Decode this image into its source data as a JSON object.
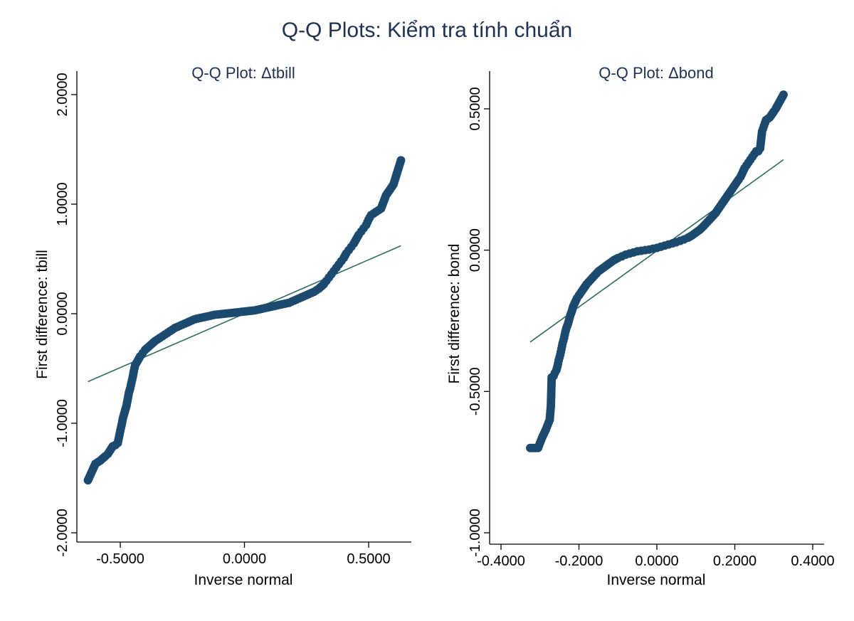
{
  "page_title": "Q-Q Plots: Kiểm tra tính chuẩn",
  "colors": {
    "points": "#1c4a6e",
    "line": "#2e6b61",
    "axis": "#000000",
    "title": "#1f3152"
  },
  "chart_data": [
    {
      "type": "scatter",
      "title": "Q-Q Plot: Δtbill",
      "xlabel": "Inverse normal",
      "ylabel": "First difference: tbill",
      "xlim": [
        -0.5,
        0.5
      ],
      "ylim": [
        -2.0,
        2.0
      ],
      "xticks": [
        -0.5,
        0.0,
        0.5
      ],
      "xtick_labels": [
        "-0.5000",
        "0.0000",
        "0.5000"
      ],
      "yticks": [
        -2.0,
        -1.0,
        0.0,
        1.0,
        2.0
      ],
      "ytick_labels": [
        "-2.0000",
        "-1.0000",
        "0.0000",
        "1.0000",
        "2.0000"
      ],
      "reference_line": {
        "x": [
          -0.63,
          0.63
        ],
        "y": [
          -0.62,
          0.62
        ]
      },
      "series": [
        {
          "x": [
            -0.63,
            -0.6,
            -0.58,
            -0.56,
            -0.55,
            -0.53,
            -0.52,
            -0.51,
            -0.5,
            -0.495,
            -0.49,
            -0.485,
            -0.48,
            -0.475,
            -0.47,
            -0.465,
            -0.46,
            -0.455,
            -0.45,
            -0.445,
            -0.44,
            -0.43,
            -0.42,
            -0.41,
            -0.4,
            -0.38,
            -0.36,
            -0.34,
            -0.32,
            -0.3,
            -0.28,
            -0.26,
            -0.24,
            -0.22,
            -0.2,
            -0.18,
            -0.16,
            -0.14,
            -0.12,
            -0.1,
            -0.08,
            -0.06,
            -0.04,
            -0.02,
            0.0,
            0.02,
            0.04,
            0.06,
            0.08,
            0.1,
            0.12,
            0.14,
            0.16,
            0.18,
            0.2,
            0.22,
            0.24,
            0.26,
            0.28,
            0.3,
            0.32,
            0.33,
            0.34,
            0.35,
            0.36,
            0.37,
            0.38,
            0.39,
            0.4,
            0.41,
            0.42,
            0.43,
            0.44,
            0.45,
            0.46,
            0.47,
            0.48,
            0.49,
            0.5,
            0.51,
            0.53,
            0.55,
            0.57,
            0.6,
            0.63
          ],
          "y": [
            -1.52,
            -1.37,
            -1.34,
            -1.3,
            -1.28,
            -1.21,
            -1.2,
            -1.18,
            -1.07,
            -1.02,
            -0.96,
            -0.92,
            -0.88,
            -0.84,
            -0.78,
            -0.72,
            -0.68,
            -0.63,
            -0.58,
            -0.52,
            -0.47,
            -0.43,
            -0.39,
            -0.36,
            -0.33,
            -0.29,
            -0.25,
            -0.22,
            -0.19,
            -0.16,
            -0.13,
            -0.11,
            -0.09,
            -0.07,
            -0.05,
            -0.04,
            -0.03,
            -0.02,
            -0.01,
            -0.005,
            0.0,
            0.005,
            0.01,
            0.015,
            0.02,
            0.025,
            0.03,
            0.04,
            0.05,
            0.06,
            0.07,
            0.08,
            0.09,
            0.1,
            0.12,
            0.14,
            0.16,
            0.18,
            0.2,
            0.23,
            0.27,
            0.3,
            0.33,
            0.36,
            0.39,
            0.42,
            0.45,
            0.48,
            0.51,
            0.55,
            0.58,
            0.61,
            0.64,
            0.68,
            0.72,
            0.75,
            0.78,
            0.81,
            0.86,
            0.9,
            0.93,
            0.96,
            1.08,
            1.18,
            1.4
          ]
        }
      ]
    },
    {
      "type": "scatter",
      "title": "Q-Q Plot: Δbond",
      "xlabel": "Inverse normal",
      "ylabel": "First difference: bond",
      "xlim": [
        -0.4,
        0.4
      ],
      "ylim": [
        -1.0,
        0.5
      ],
      "xticks": [
        -0.4,
        -0.2,
        0.0,
        0.2,
        0.4
      ],
      "xtick_labels": [
        "-0.4000",
        "-0.2000",
        "0.0000",
        "0.2000",
        "0.4000"
      ],
      "yticks": [
        -1.0,
        -0.5,
        0.0,
        0.5
      ],
      "ytick_labels": [
        "-1.0000",
        "-0.5000",
        "0.0000",
        "0.5000"
      ],
      "reference_line": {
        "x": [
          -0.325,
          0.325
        ],
        "y": [
          -0.325,
          0.32
        ]
      },
      "series": [
        {
          "x": [
            -0.325,
            -0.305,
            -0.295,
            -0.285,
            -0.275,
            -0.272,
            -0.27,
            -0.265,
            -0.262,
            -0.258,
            -0.255,
            -0.252,
            -0.248,
            -0.245,
            -0.242,
            -0.238,
            -0.235,
            -0.232,
            -0.228,
            -0.225,
            -0.222,
            -0.218,
            -0.215,
            -0.21,
            -0.205,
            -0.2,
            -0.19,
            -0.18,
            -0.17,
            -0.16,
            -0.15,
            -0.14,
            -0.13,
            -0.12,
            -0.11,
            -0.1,
            -0.09,
            -0.08,
            -0.07,
            -0.06,
            -0.05,
            -0.04,
            -0.03,
            -0.02,
            -0.01,
            0.0,
            0.01,
            0.02,
            0.03,
            0.04,
            0.05,
            0.06,
            0.07,
            0.08,
            0.09,
            0.1,
            0.11,
            0.12,
            0.13,
            0.14,
            0.15,
            0.16,
            0.17,
            0.18,
            0.19,
            0.2,
            0.21,
            0.215,
            0.22,
            0.225,
            0.23,
            0.235,
            0.24,
            0.245,
            0.25,
            0.255,
            0.26,
            0.265,
            0.27,
            0.275,
            0.28,
            0.29,
            0.3,
            0.305,
            0.325
          ],
          "y": [
            -0.7,
            -0.7,
            -0.665,
            -0.635,
            -0.6,
            -0.55,
            -0.45,
            -0.445,
            -0.435,
            -0.425,
            -0.41,
            -0.39,
            -0.37,
            -0.35,
            -0.33,
            -0.31,
            -0.29,
            -0.275,
            -0.26,
            -0.245,
            -0.23,
            -0.215,
            -0.2,
            -0.185,
            -0.17,
            -0.16,
            -0.14,
            -0.12,
            -0.105,
            -0.09,
            -0.075,
            -0.065,
            -0.055,
            -0.045,
            -0.035,
            -0.028,
            -0.022,
            -0.016,
            -0.012,
            -0.008,
            -0.004,
            -0.002,
            0.0,
            0.002,
            0.005,
            0.008,
            0.012,
            0.016,
            0.02,
            0.024,
            0.028,
            0.033,
            0.038,
            0.044,
            0.052,
            0.062,
            0.072,
            0.085,
            0.1,
            0.115,
            0.13,
            0.15,
            0.17,
            0.19,
            0.21,
            0.23,
            0.25,
            0.26,
            0.275,
            0.29,
            0.3,
            0.31,
            0.32,
            0.33,
            0.34,
            0.35,
            0.35,
            0.36,
            0.42,
            0.44,
            0.46,
            0.47,
            0.49,
            0.5,
            0.55
          ]
        }
      ]
    }
  ]
}
